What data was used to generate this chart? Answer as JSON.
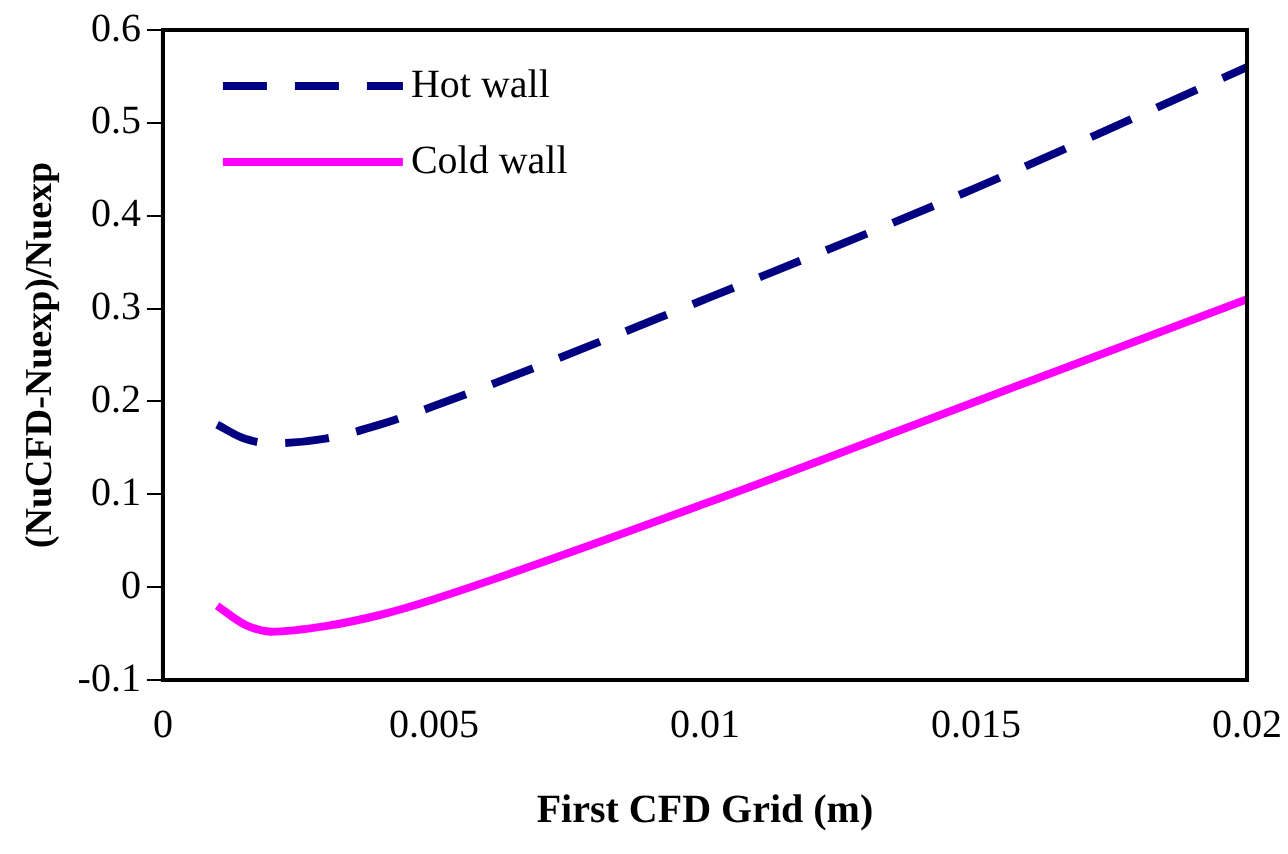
{
  "chart_data": {
    "type": "line",
    "xlabel": "First CFD Grid (m)",
    "ylabel": "(NuCFD-Nuexp)/Nuexp",
    "xlim": [
      0,
      0.02
    ],
    "xticks": [
      0,
      0.005,
      0.01,
      0.015,
      0.02
    ],
    "ylim": [
      -0.1,
      0.6
    ],
    "yticks": [
      -0.1,
      0,
      0.1,
      0.2,
      0.3,
      0.4,
      0.5,
      0.6
    ],
    "grid": false,
    "legend": "top left",
    "marker": "none",
    "series": [
      {
        "name": "Hot wall",
        "color": "#000080",
        "line_style": "dashed",
        "x": [
          0.001,
          0.0015,
          0.002,
          0.003,
          0.004,
          0.005,
          0.01,
          0.015,
          0.02
        ],
        "values": [
          0.175,
          0.16,
          0.155,
          0.16,
          0.175,
          0.195,
          0.31,
          0.43,
          0.56
        ]
      },
      {
        "name": "Cold wall",
        "color": "#ff00ff",
        "line_style": "solid",
        "x": [
          0.001,
          0.0015,
          0.002,
          0.003,
          0.004,
          0.005,
          0.01,
          0.015,
          0.02
        ],
        "values": [
          -0.02,
          -0.04,
          -0.048,
          -0.042,
          -0.03,
          -0.013,
          0.09,
          0.2,
          0.31
        ]
      }
    ]
  }
}
